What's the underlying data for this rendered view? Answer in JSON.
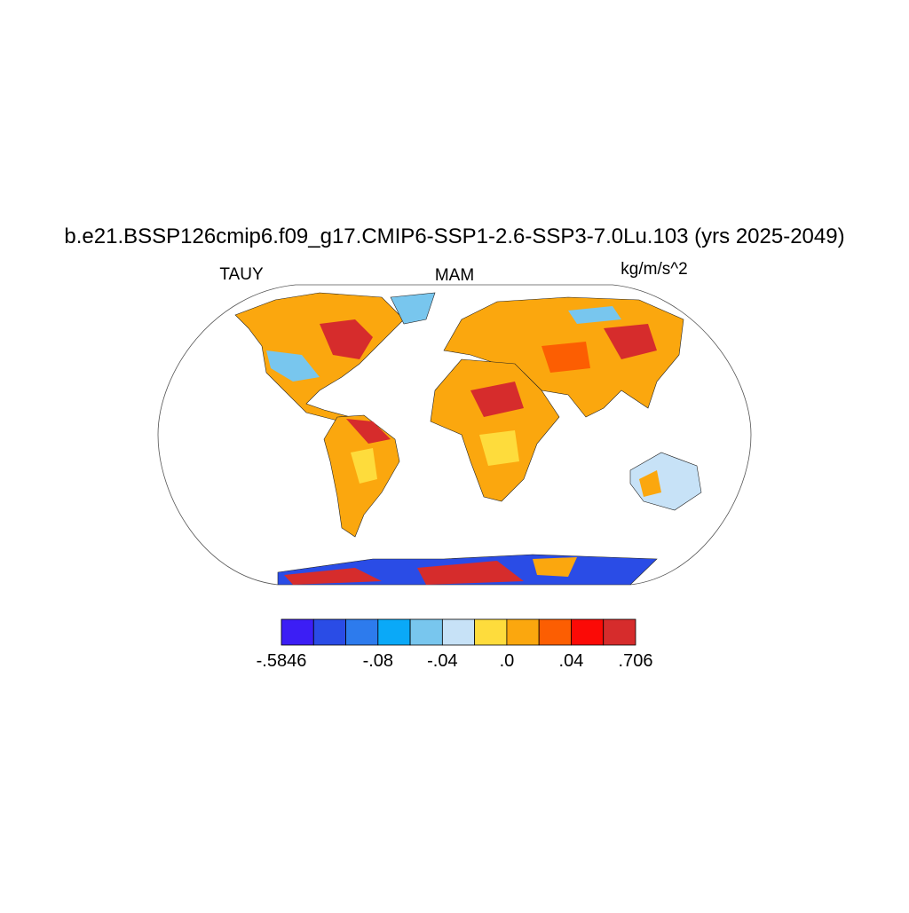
{
  "map": {
    "title": "b.e21.BSSP126cmip6.f09_g17.CMIP6-SSP1-2.6-SSP3-7.0Lu.103 (yrs 2025-2049)",
    "left_label": "TAUY",
    "center_label": "MAM",
    "right_label": "kg/m/s^2",
    "colorbar": {
      "colors": [
        "#3c1ef5",
        "#2a4ce6",
        "#2d7bed",
        "#0aa9f8",
        "#78c6ee",
        "#c7e2f7",
        "#fedc3c",
        "#fba70e",
        "#fc5e02",
        "#fb0a06",
        "#d62c2c"
      ],
      "boundaries": [
        {
          "value": -0.5846,
          "label": "-.5846"
        },
        null,
        null,
        {
          "value": -0.08,
          "label": "-.08"
        },
        null,
        {
          "value": -0.04,
          "label": "-.04"
        },
        null,
        {
          "value": 0,
          "label": ".0"
        },
        null,
        {
          "value": 0.04,
          "label": ".04"
        },
        null,
        {
          "value": 0.706,
          "label": ".706"
        }
      ]
    }
  }
}
